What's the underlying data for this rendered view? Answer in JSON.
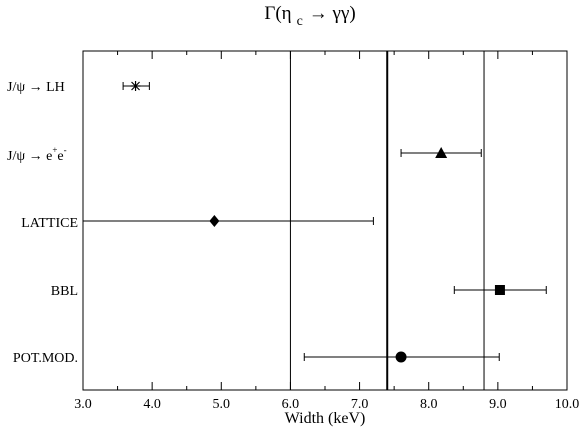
{
  "chart_data": {
    "type": "scatter",
    "title_main": "Γ(η",
    "title_sub": "c",
    "title_end": "→ γγ)",
    "xlabel": "Width (keV)",
    "ylabel": "",
    "xlim": [
      3.0,
      10.0
    ],
    "x_ticks": [
      "3.0",
      "4.0",
      "5.0",
      "6.0",
      "7.0",
      "8.0",
      "9.0",
      "10.0"
    ],
    "x_tick_values": [
      3,
      4,
      5,
      6,
      7,
      8,
      9,
      10
    ],
    "reference_lines": [
      {
        "x": 6.0,
        "style": "thin"
      },
      {
        "x": 7.4,
        "style": "thick"
      },
      {
        "x": 8.8,
        "style": "thin"
      }
    ],
    "points": [
      {
        "label": "J/ψ → LH",
        "value": 3.76,
        "err_low": 3.58,
        "err_high": 3.96,
        "marker": "asterisk"
      },
      {
        "label": "J/ψ → e+e-",
        "value": 8.18,
        "err_low": 7.6,
        "err_high": 8.76,
        "marker": "triangle"
      },
      {
        "label": "LATTICE",
        "value": 4.9,
        "err_low": 3.0,
        "err_high": 7.2,
        "marker": "diamond"
      },
      {
        "label": "BBL",
        "value": 9.03,
        "err_low": 8.37,
        "err_high": 9.7,
        "marker": "square"
      },
      {
        "label": "POT.MOD.",
        "value": 7.6,
        "err_low": 6.2,
        "err_high": 9.02,
        "marker": "circle"
      }
    ],
    "grid": false,
    "legend": "none"
  }
}
